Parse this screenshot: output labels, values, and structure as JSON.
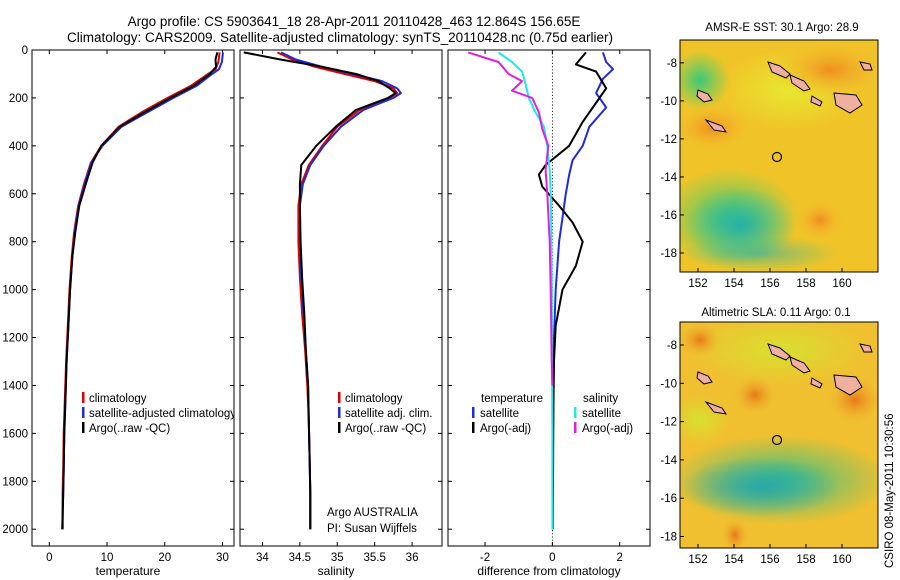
{
  "header": {
    "line1": "Argo profile: CS 5903641_18 28-Apr-2011 20110428_463 12.864S 156.65E",
    "line2": "Climatology: CARS2009. Satellite-adjusted climatology: synTS_20110428.nc (0.75d earlier)"
  },
  "footer_note": "CSIRO 08-May-2011 10:30:56",
  "colors": {
    "climatology": "#e00000",
    "satellite": "#1e2bd6",
    "argo": "#000000",
    "argo_adj": "#e020e0",
    "sat_cyan": "#20e8e8"
  },
  "chart_data": [
    {
      "type": "line",
      "xlabel": "temperature",
      "ylabel": "",
      "xlim": [
        -3,
        32
      ],
      "ylim": [
        2070,
        0
      ],
      "xticks": [
        0,
        10,
        20,
        30
      ],
      "yticks": [
        0,
        200,
        400,
        600,
        800,
        1000,
        1200,
        1400,
        1600,
        1800,
        2000
      ],
      "legend": {
        "placement": "lower-left",
        "items": [
          "climatology",
          "satellite-adjusted climatology",
          "Argo(..raw -QC)"
        ],
        "colors": [
          "#e00000",
          "#1e2bd6",
          "#000000"
        ]
      },
      "series": [
        {
          "name": "climatology",
          "color": "#e00000",
          "x": [
            29.5,
            29.3,
            28.8,
            27.5,
            24.5,
            20.5,
            16,
            12,
            9,
            7.2,
            6,
            5,
            4.3,
            3.9,
            3.5,
            3.2,
            2.9,
            2.7,
            2.5,
            2.4,
            2.3,
            2.3,
            2.2
          ],
          "y": [
            10,
            50,
            80,
            100,
            150,
            200,
            260,
            320,
            400,
            470,
            560,
            650,
            760,
            860,
            1000,
            1150,
            1300,
            1450,
            1600,
            1750,
            1850,
            1950,
            2000
          ]
        },
        {
          "name": "satellite-adjusted climatology",
          "color": "#1e2bd6",
          "x": [
            30.1,
            29.9,
            29.4,
            28.2,
            25.5,
            21.5,
            17,
            12.5,
            9.2,
            7.3,
            6.1,
            5.1,
            4.4,
            4,
            3.6,
            3.3,
            3,
            2.8,
            2.6,
            2.5,
            2.4,
            2.3,
            2.3
          ],
          "y": [
            10,
            50,
            80,
            100,
            150,
            200,
            260,
            320,
            400,
            470,
            560,
            650,
            760,
            860,
            1000,
            1150,
            1300,
            1450,
            1600,
            1750,
            1850,
            1950,
            2000
          ]
        },
        {
          "name": "Argo(..raw -QC)",
          "color": "#000000",
          "x": [
            29.1,
            28.8,
            28.9,
            27.8,
            25,
            21,
            16.5,
            12.2,
            9,
            7.5,
            6.3,
            5.2,
            4.5,
            4,
            3.6,
            3.3,
            3,
            2.8,
            2.6,
            2.5,
            2.4,
            2.3,
            2.3
          ],
          "y": [
            10,
            40,
            70,
            100,
            150,
            200,
            260,
            320,
            400,
            470,
            560,
            650,
            760,
            860,
            1000,
            1150,
            1300,
            1450,
            1600,
            1750,
            1850,
            1950,
            2000
          ]
        }
      ]
    },
    {
      "type": "line",
      "xlabel": "salinity",
      "ylabel": "",
      "xlim": [
        33.7,
        36.4
      ],
      "ylim": [
        2070,
        0
      ],
      "xticks": [
        34,
        34.5,
        35,
        35.5,
        36
      ],
      "xtick_labels": [
        "34",
        "34.5",
        "35",
        "35.5",
        "36"
      ],
      "yticks": [
        0,
        200,
        400,
        600,
        800,
        1000,
        1200,
        1400,
        1600,
        1800,
        2000
      ],
      "legend": {
        "placement": "lower-right",
        "items": [
          "climatology",
          "satellite adj. clim.",
          "Argo(..raw -QC)"
        ],
        "colors": [
          "#e00000",
          "#1e2bd6",
          "#000000"
        ]
      },
      "annotation": [
        "Argo AUSTRALIA",
        "PI: Susan Wijffels"
      ],
      "series": [
        {
          "name": "climatology",
          "color": "#e00000",
          "x": [
            34.2,
            34.4,
            34.7,
            35.1,
            35.5,
            35.75,
            35.8,
            35.7,
            35.3,
            35,
            34.8,
            34.62,
            34.52,
            34.48,
            34.48,
            34.5,
            34.53,
            34.57,
            34.6,
            34.62,
            34.63,
            34.64,
            34.64
          ],
          "y": [
            10,
            40,
            70,
            100,
            130,
            160,
            180,
            200,
            250,
            320,
            400,
            480,
            560,
            650,
            800,
            950,
            1100,
            1250,
            1400,
            1550,
            1700,
            1850,
            2000
          ]
        },
        {
          "name": "satellite adj. clim.",
          "color": "#1e2bd6",
          "x": [
            34.25,
            34.45,
            34.8,
            35.2,
            35.6,
            35.8,
            35.85,
            35.75,
            35.35,
            35.05,
            34.82,
            34.64,
            34.54,
            34.5,
            34.5,
            34.52,
            34.55,
            34.58,
            34.61,
            34.62,
            34.63,
            34.64,
            34.64
          ],
          "y": [
            10,
            40,
            70,
            100,
            130,
            160,
            180,
            200,
            250,
            320,
            400,
            480,
            560,
            650,
            800,
            950,
            1100,
            1250,
            1400,
            1550,
            1700,
            1850,
            2000
          ]
        },
        {
          "name": "Argo(..raw -QC)",
          "color": "#000000",
          "x": [
            33.75,
            34.25,
            34.8,
            35.25,
            35.55,
            35.7,
            35.78,
            35.68,
            35.25,
            34.98,
            34.72,
            34.52,
            34.5,
            34.5,
            34.51,
            34.53,
            34.56,
            34.58,
            34.61,
            34.62,
            34.63,
            34.64,
            34.64
          ],
          "y": [
            10,
            40,
            70,
            100,
            130,
            160,
            180,
            200,
            250,
            320,
            400,
            480,
            560,
            650,
            800,
            950,
            1100,
            1250,
            1400,
            1550,
            1700,
            1850,
            2000
          ]
        }
      ]
    },
    {
      "type": "line",
      "xlabel": "difference from climatology",
      "ylabel": "",
      "xlim": [
        -3.1,
        2.9
      ],
      "ylim": [
        2070,
        0
      ],
      "xticks": [
        -2,
        0,
        2
      ],
      "yticks": [
        0,
        200,
        400,
        600,
        800,
        1000,
        1200,
        1400,
        1600,
        1800,
        2000
      ],
      "legend": {
        "placement": "lower-center",
        "temperature_heading": "temperature",
        "temperature_items": [
          "satellite",
          "Argo(-adj)"
        ],
        "temperature_colors": [
          "#1e2bd6",
          "#000000"
        ],
        "salinity_heading": "salinity",
        "salinity_items": [
          "satellite",
          "Argo(-adj)"
        ],
        "salinity_colors": [
          "#20e8e8",
          "#e020e0"
        ]
      },
      "series": [
        {
          "name": "temperature satellite",
          "color": "#1e2bd6",
          "x": [
            1.5,
            1.6,
            1.8,
            1.5,
            1.3,
            1.6,
            1.1,
            0.9,
            0.6,
            0.5,
            0.4,
            0.3,
            0.2,
            0.15,
            0.1,
            0.05,
            0.03,
            0.02,
            0.02,
            0.01,
            0.01
          ],
          "y": [
            10,
            50,
            80,
            120,
            180,
            240,
            320,
            400,
            460,
            520,
            600,
            700,
            800,
            900,
            1000,
            1200,
            1400,
            1600,
            1800,
            1900,
            2000
          ]
        },
        {
          "name": "temperature Argo(-adj)",
          "color": "#000000",
          "x": [
            1.0,
            0.7,
            1.3,
            1.6,
            1.2,
            0.9,
            0.5,
            -0.2,
            -0.4,
            -0.3,
            0.2,
            0.6,
            0.9,
            0.7,
            0.3,
            0.1,
            0.05,
            0.03,
            0.02,
            0.01
          ],
          "y": [
            10,
            60,
            90,
            160,
            240,
            300,
            400,
            480,
            520,
            570,
            650,
            720,
            800,
            900,
            1000,
            1150,
            1300,
            1500,
            1800,
            2000
          ]
        },
        {
          "name": "salinity satellite",
          "color": "#20e8e8",
          "x": [
            -1.6,
            -1.2,
            -0.9,
            -0.8,
            -0.7,
            -0.5,
            -0.25,
            -0.15,
            -0.08,
            -0.05,
            -0.03,
            -0.02,
            -0.01,
            0.0,
            0.0,
            0.0
          ],
          "y": [
            10,
            50,
            90,
            140,
            200,
            260,
            320,
            400,
            500,
            600,
            800,
            1000,
            1300,
            1600,
            1800,
            2000
          ]
        },
        {
          "name": "salinity Argo(-adj)",
          "color": "#e020e0",
          "x": [
            -2.5,
            -1.6,
            -1.3,
            -0.9,
            -1.2,
            -0.6,
            -0.4,
            -0.3,
            -0.12,
            -0.2,
            -0.15,
            -0.08,
            -0.05,
            -0.02,
            0.0
          ],
          "y": [
            10,
            50,
            100,
            130,
            170,
            200,
            260,
            330,
            400,
            500,
            600,
            800,
            1000,
            1300,
            1400
          ]
        }
      ]
    },
    {
      "type": "heatmap",
      "title": "AMSR-E SST: 30.1 Argo: 28.9",
      "xticks": [
        152,
        154,
        156,
        158,
        160
      ],
      "yticks": [
        -8,
        -10,
        -12,
        -14,
        -16,
        -18
      ],
      "xlim": [
        151,
        162
      ],
      "ylim": [
        -19,
        -6.8
      ],
      "marker": {
        "lon": 156.65,
        "lat": -12.864
      }
    },
    {
      "type": "heatmap",
      "title": "Altimetric SLA: 0.11 Argo: 0.1",
      "xticks": [
        152,
        154,
        156,
        158,
        160
      ],
      "yticks": [
        -8,
        -10,
        -12,
        -14,
        -16,
        -18
      ],
      "xlim": [
        151,
        162
      ],
      "ylim": [
        -18.6,
        -6.8
      ],
      "marker": {
        "lon": 156.65,
        "lat": -12.864
      }
    }
  ]
}
